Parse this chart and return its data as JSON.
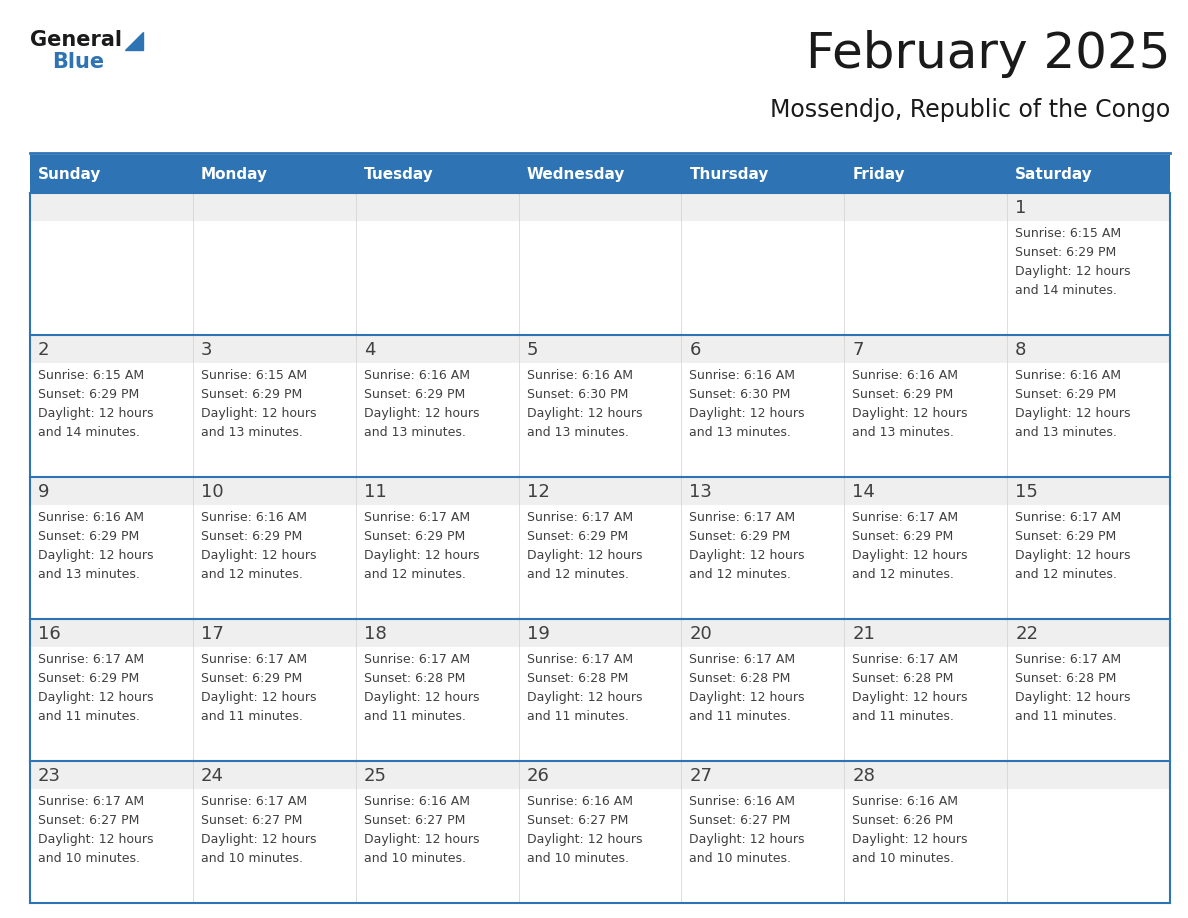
{
  "title": "February 2025",
  "subtitle": "Mossendjo, Republic of the Congo",
  "header_bg": "#2E74B5",
  "header_text_color": "#FFFFFF",
  "days_of_week": [
    "Sunday",
    "Monday",
    "Tuesday",
    "Wednesday",
    "Thursday",
    "Friday",
    "Saturday"
  ],
  "cell_bg_strip": "#EFEFEF",
  "cell_bg_body": "#FFFFFF",
  "separator_color": "#2E74B5",
  "day_num_color": "#404040",
  "info_text_color": "#404040",
  "logo_general_color": "#1A1A1A",
  "logo_blue_color": "#2E74B5",
  "calendar": [
    [
      null,
      null,
      null,
      null,
      null,
      null,
      {
        "day": 1,
        "sunrise": "6:15 AM",
        "sunset": "6:29 PM",
        "daylight": "12 hours",
        "daylight2": "and 14 minutes."
      }
    ],
    [
      {
        "day": 2,
        "sunrise": "6:15 AM",
        "sunset": "6:29 PM",
        "daylight": "12 hours",
        "daylight2": "and 14 minutes."
      },
      {
        "day": 3,
        "sunrise": "6:15 AM",
        "sunset": "6:29 PM",
        "daylight": "12 hours",
        "daylight2": "and 13 minutes."
      },
      {
        "day": 4,
        "sunrise": "6:16 AM",
        "sunset": "6:29 PM",
        "daylight": "12 hours",
        "daylight2": "and 13 minutes."
      },
      {
        "day": 5,
        "sunrise": "6:16 AM",
        "sunset": "6:30 PM",
        "daylight": "12 hours",
        "daylight2": "and 13 minutes."
      },
      {
        "day": 6,
        "sunrise": "6:16 AM",
        "sunset": "6:30 PM",
        "daylight": "12 hours",
        "daylight2": "and 13 minutes."
      },
      {
        "day": 7,
        "sunrise": "6:16 AM",
        "sunset": "6:29 PM",
        "daylight": "12 hours",
        "daylight2": "and 13 minutes."
      },
      {
        "day": 8,
        "sunrise": "6:16 AM",
        "sunset": "6:29 PM",
        "daylight": "12 hours",
        "daylight2": "and 13 minutes."
      }
    ],
    [
      {
        "day": 9,
        "sunrise": "6:16 AM",
        "sunset": "6:29 PM",
        "daylight": "12 hours",
        "daylight2": "and 13 minutes."
      },
      {
        "day": 10,
        "sunrise": "6:16 AM",
        "sunset": "6:29 PM",
        "daylight": "12 hours",
        "daylight2": "and 12 minutes."
      },
      {
        "day": 11,
        "sunrise": "6:17 AM",
        "sunset": "6:29 PM",
        "daylight": "12 hours",
        "daylight2": "and 12 minutes."
      },
      {
        "day": 12,
        "sunrise": "6:17 AM",
        "sunset": "6:29 PM",
        "daylight": "12 hours",
        "daylight2": "and 12 minutes."
      },
      {
        "day": 13,
        "sunrise": "6:17 AM",
        "sunset": "6:29 PM",
        "daylight": "12 hours",
        "daylight2": "and 12 minutes."
      },
      {
        "day": 14,
        "sunrise": "6:17 AM",
        "sunset": "6:29 PM",
        "daylight": "12 hours",
        "daylight2": "and 12 minutes."
      },
      {
        "day": 15,
        "sunrise": "6:17 AM",
        "sunset": "6:29 PM",
        "daylight": "12 hours",
        "daylight2": "and 12 minutes."
      }
    ],
    [
      {
        "day": 16,
        "sunrise": "6:17 AM",
        "sunset": "6:29 PM",
        "daylight": "12 hours",
        "daylight2": "and 11 minutes."
      },
      {
        "day": 17,
        "sunrise": "6:17 AM",
        "sunset": "6:29 PM",
        "daylight": "12 hours",
        "daylight2": "and 11 minutes."
      },
      {
        "day": 18,
        "sunrise": "6:17 AM",
        "sunset": "6:28 PM",
        "daylight": "12 hours",
        "daylight2": "and 11 minutes."
      },
      {
        "day": 19,
        "sunrise": "6:17 AM",
        "sunset": "6:28 PM",
        "daylight": "12 hours",
        "daylight2": "and 11 minutes."
      },
      {
        "day": 20,
        "sunrise": "6:17 AM",
        "sunset": "6:28 PM",
        "daylight": "12 hours",
        "daylight2": "and 11 minutes."
      },
      {
        "day": 21,
        "sunrise": "6:17 AM",
        "sunset": "6:28 PM",
        "daylight": "12 hours",
        "daylight2": "and 11 minutes."
      },
      {
        "day": 22,
        "sunrise": "6:17 AM",
        "sunset": "6:28 PM",
        "daylight": "12 hours",
        "daylight2": "and 11 minutes."
      }
    ],
    [
      {
        "day": 23,
        "sunrise": "6:17 AM",
        "sunset": "6:27 PM",
        "daylight": "12 hours",
        "daylight2": "and 10 minutes."
      },
      {
        "day": 24,
        "sunrise": "6:17 AM",
        "sunset": "6:27 PM",
        "daylight": "12 hours",
        "daylight2": "and 10 minutes."
      },
      {
        "day": 25,
        "sunrise": "6:16 AM",
        "sunset": "6:27 PM",
        "daylight": "12 hours",
        "daylight2": "and 10 minutes."
      },
      {
        "day": 26,
        "sunrise": "6:16 AM",
        "sunset": "6:27 PM",
        "daylight": "12 hours",
        "daylight2": "and 10 minutes."
      },
      {
        "day": 27,
        "sunrise": "6:16 AM",
        "sunset": "6:27 PM",
        "daylight": "12 hours",
        "daylight2": "and 10 minutes."
      },
      {
        "day": 28,
        "sunrise": "6:16 AM",
        "sunset": "6:26 PM",
        "daylight": "12 hours",
        "daylight2": "and 10 minutes."
      },
      null
    ]
  ]
}
